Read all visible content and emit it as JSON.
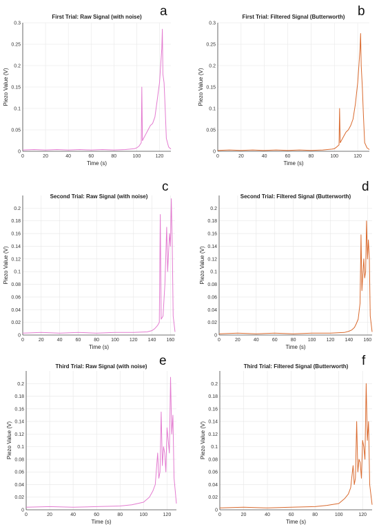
{
  "colors": {
    "raw": "#e37bd0",
    "filtered": "#d9692d",
    "axis": "#444444",
    "grid": "#e6e6e6"
  },
  "chart_data": [
    {
      "type": "line",
      "letter": "a",
      "title": "First Trial: Raw Signal (with noise)",
      "xlabel": "Time (s)",
      "ylabel": "Piezo Value (V)",
      "xlim": [
        0,
        130
      ],
      "ylim": [
        0,
        0.3
      ],
      "xticks": [
        0,
        20,
        40,
        60,
        80,
        100,
        120
      ],
      "yticks": [
        0,
        0.05,
        0.1,
        0.15,
        0.2,
        0.25,
        0.3
      ],
      "xtick_labels": [
        "0",
        "20",
        "40",
        "60",
        "80",
        "100",
        "120"
      ],
      "ytick_labels": [
        "0",
        "0.05",
        "0.1",
        "0.15",
        "0.2",
        "0.25",
        "0.3"
      ],
      "grid": true,
      "color": "raw",
      "series": [
        {
          "x": [
            0,
            10,
            20,
            30,
            40,
            50,
            60,
            70,
            80,
            90,
            98,
            100,
            102,
            104,
            104.5,
            105,
            106,
            108,
            110,
            112,
            114,
            116,
            117,
            118,
            119,
            120,
            121,
            122,
            122.5,
            123,
            124,
            125,
            126,
            128,
            130
          ],
          "y": [
            0.003,
            0.004,
            0.003,
            0.004,
            0.003,
            0.004,
            0.003,
            0.004,
            0.003,
            0.004,
            0.006,
            0.008,
            0.012,
            0.02,
            0.15,
            0.025,
            0.03,
            0.04,
            0.05,
            0.06,
            0.065,
            0.08,
            0.1,
            0.12,
            0.14,
            0.16,
            0.2,
            0.24,
            0.285,
            0.18,
            0.16,
            0.1,
            0.03,
            0.01,
            0.005
          ]
        }
      ]
    },
    {
      "type": "line",
      "letter": "b",
      "title": "First Trial: Filtered Signal (Butterworth)",
      "xlabel": "Time (s)",
      "ylabel": "Piezo Value (V)",
      "xlim": [
        0,
        130
      ],
      "ylim": [
        0,
        0.3
      ],
      "xticks": [
        0,
        20,
        40,
        60,
        80,
        100,
        120
      ],
      "yticks": [
        0,
        0.05,
        0.1,
        0.15,
        0.2,
        0.25,
        0.3
      ],
      "xtick_labels": [
        "0",
        "20",
        "40",
        "60",
        "80",
        "100",
        "120"
      ],
      "ytick_labels": [
        "0",
        "0.05",
        "0.1",
        "0.15",
        "0.2",
        "0.25",
        "0.3"
      ],
      "grid": true,
      "color": "filtered",
      "series": [
        {
          "x": [
            0,
            10,
            20,
            30,
            40,
            50,
            60,
            70,
            80,
            90,
            98,
            100,
            102,
            104,
            104.5,
            105,
            106,
            108,
            110,
            112,
            114,
            116,
            118,
            120,
            121,
            122,
            122.5,
            123,
            124,
            125,
            126,
            128,
            130
          ],
          "y": [
            0.002,
            0.003,
            0.002,
            0.003,
            0.002,
            0.003,
            0.002,
            0.003,
            0.002,
            0.003,
            0.005,
            0.006,
            0.01,
            0.015,
            0.1,
            0.02,
            0.025,
            0.035,
            0.045,
            0.05,
            0.06,
            0.075,
            0.11,
            0.16,
            0.2,
            0.24,
            0.275,
            0.2,
            0.15,
            0.08,
            0.02,
            0.008,
            0.004
          ]
        }
      ]
    },
    {
      "type": "line",
      "letter": "c",
      "title": "Second Trial: Raw Signal (with noise)",
      "xlabel": "Time (s)",
      "ylabel": "Piezo Value (V)",
      "xlim": [
        0,
        165
      ],
      "ylim": [
        0,
        0.22
      ],
      "xticks": [
        0,
        20,
        40,
        60,
        80,
        100,
        120,
        140,
        160
      ],
      "yticks": [
        0,
        0.02,
        0.04,
        0.06,
        0.08,
        0.1,
        0.12,
        0.14,
        0.16,
        0.18,
        0.2
      ],
      "xtick_labels": [
        "0",
        "20",
        "40",
        "60",
        "80",
        "100",
        "120",
        "140",
        "160"
      ],
      "ytick_labels": [
        "0",
        "0.02",
        "0.04",
        "0.06",
        "0.08",
        "0.1",
        "0.12",
        "0.14",
        "0.16",
        "0.18",
        "0.2"
      ],
      "grid": true,
      "color": "raw",
      "series": [
        {
          "x": [
            0,
            20,
            40,
            60,
            80,
            100,
            120,
            135,
            140,
            143,
            146,
            148,
            149,
            150,
            152,
            154,
            156,
            157,
            158,
            159,
            160,
            161,
            162,
            163,
            165
          ],
          "y": [
            0.003,
            0.004,
            0.003,
            0.004,
            0.003,
            0.004,
            0.004,
            0.005,
            0.007,
            0.01,
            0.015,
            0.02,
            0.19,
            0.025,
            0.03,
            0.08,
            0.17,
            0.1,
            0.13,
            0.16,
            0.14,
            0.215,
            0.14,
            0.03,
            0.005
          ]
        }
      ]
    },
    {
      "type": "line",
      "letter": "d",
      "title": "Second Trial: Filtered Signal (Butterworth)",
      "xlabel": "Time (s)",
      "ylabel": "Piezo Value (V)",
      "xlim": [
        0,
        165
      ],
      "ylim": [
        0,
        0.22
      ],
      "xticks": [
        0,
        20,
        40,
        60,
        80,
        100,
        120,
        140,
        160
      ],
      "yticks": [
        0,
        0.02,
        0.04,
        0.06,
        0.08,
        0.1,
        0.12,
        0.14,
        0.16,
        0.18,
        0.2
      ],
      "xtick_labels": [
        "0",
        "20",
        "40",
        "60",
        "80",
        "100",
        "120",
        "140",
        "160"
      ],
      "ytick_labels": [
        "0",
        "0.02",
        "0.04",
        "0.06",
        "0.08",
        "0.1",
        "0.12",
        "0.14",
        "0.16",
        "0.18",
        "0.2"
      ],
      "grid": true,
      "color": "filtered",
      "series": [
        {
          "x": [
            0,
            20,
            40,
            60,
            80,
            100,
            120,
            135,
            140,
            143,
            146,
            148,
            150,
            152,
            153,
            154,
            156,
            157,
            158,
            159,
            160,
            161,
            162,
            163,
            165
          ],
          "y": [
            0.002,
            0.003,
            0.002,
            0.003,
            0.002,
            0.003,
            0.003,
            0.004,
            0.006,
            0.008,
            0.012,
            0.018,
            0.025,
            0.05,
            0.158,
            0.07,
            0.12,
            0.09,
            0.1,
            0.18,
            0.12,
            0.15,
            0.12,
            0.03,
            0.005
          ]
        }
      ]
    },
    {
      "type": "line",
      "letter": "e",
      "title": "Third Trial: Raw Signal (with noise)",
      "xlabel": "Time (s)",
      "ylabel": "Piezo Value (V)",
      "xlim": [
        0,
        128
      ],
      "ylim": [
        0,
        0.22
      ],
      "xticks": [
        0,
        20,
        40,
        60,
        80,
        100,
        120
      ],
      "yticks": [
        0,
        0.02,
        0.04,
        0.06,
        0.08,
        0.1,
        0.12,
        0.14,
        0.16,
        0.18,
        0.2
      ],
      "xtick_labels": [
        "0",
        "20",
        "40",
        "60",
        "80",
        "100",
        "120"
      ],
      "ytick_labels": [
        "0",
        "0.02",
        "0.04",
        "0.06",
        "0.08",
        "0.1",
        "0.12",
        "0.14",
        "0.16",
        "0.18",
        "0.2"
      ],
      "grid": true,
      "color": "raw",
      "series": [
        {
          "x": [
            0,
            20,
            40,
            60,
            80,
            90,
            100,
            105,
            108,
            110,
            112,
            113,
            114,
            115,
            116,
            117,
            118,
            119,
            120,
            121,
            122,
            123,
            124,
            125,
            126,
            128
          ],
          "y": [
            0.004,
            0.005,
            0.004,
            0.005,
            0.006,
            0.008,
            0.012,
            0.02,
            0.03,
            0.04,
            0.09,
            0.05,
            0.06,
            0.155,
            0.07,
            0.1,
            0.09,
            0.06,
            0.13,
            0.11,
            0.09,
            0.21,
            0.12,
            0.15,
            0.05,
            0.01
          ]
        }
      ]
    },
    {
      "type": "line",
      "letter": "f",
      "title": "Third Trial: Filtered Signal (Butterworth)",
      "xlabel": "Time (s)",
      "ylabel": "Piezo Value (V)",
      "xlim": [
        0,
        128
      ],
      "ylim": [
        0,
        0.22
      ],
      "xticks": [
        0,
        20,
        40,
        60,
        80,
        100,
        120
      ],
      "yticks": [
        0,
        0.02,
        0.04,
        0.06,
        0.08,
        0.1,
        0.12,
        0.14,
        0.16,
        0.18,
        0.2
      ],
      "xtick_labels": [
        "0",
        "20",
        "40",
        "60",
        "80",
        "100",
        "120"
      ],
      "ytick_labels": [
        "0",
        "0.02",
        "0.04",
        "0.06",
        "0.08",
        "0.1",
        "0.12",
        "0.14",
        "0.16",
        "0.18",
        "0.2"
      ],
      "grid": true,
      "color": "filtered",
      "series": [
        {
          "x": [
            0,
            20,
            40,
            60,
            80,
            90,
            100,
            105,
            108,
            110,
            112,
            113,
            114,
            115,
            116,
            117,
            118,
            119,
            120,
            121,
            122,
            123,
            124,
            125,
            126,
            128
          ],
          "y": [
            0.003,
            0.004,
            0.003,
            0.004,
            0.005,
            0.007,
            0.01,
            0.018,
            0.025,
            0.035,
            0.07,
            0.04,
            0.05,
            0.14,
            0.06,
            0.08,
            0.075,
            0.05,
            0.11,
            0.1,
            0.08,
            0.2,
            0.11,
            0.14,
            0.04,
            0.008
          ]
        }
      ]
    }
  ]
}
